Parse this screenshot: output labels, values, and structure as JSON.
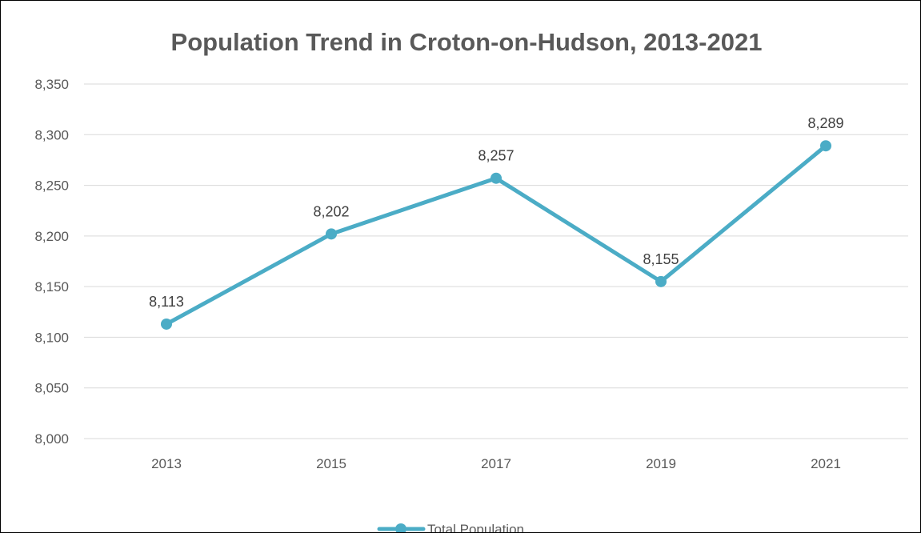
{
  "chart_data": {
    "type": "line",
    "title": "Population Trend in Croton-on-Hudson, 2013-2021",
    "xlabel": "",
    "ylabel": "",
    "categories": [
      "2013",
      "2015",
      "2017",
      "2019",
      "2021"
    ],
    "series": [
      {
        "name": "Total Population",
        "values": [
          8113,
          8202,
          8257,
          8155,
          8289
        ],
        "data_labels": [
          "8,113",
          "8,202",
          "8,257",
          "8,155",
          "8,289"
        ],
        "color": "#4BACC6"
      }
    ],
    "ylim": [
      8000,
      8350
    ],
    "y_ticks": [
      8000,
      8050,
      8100,
      8150,
      8200,
      8250,
      8300,
      8350
    ],
    "y_tick_labels": [
      "8,000",
      "8,050",
      "8,100",
      "8,150",
      "8,200",
      "8,250",
      "8,300",
      "8,350"
    ],
    "grid": true,
    "gridline_color": "#D9D9D9",
    "legend_position": "bottom"
  }
}
